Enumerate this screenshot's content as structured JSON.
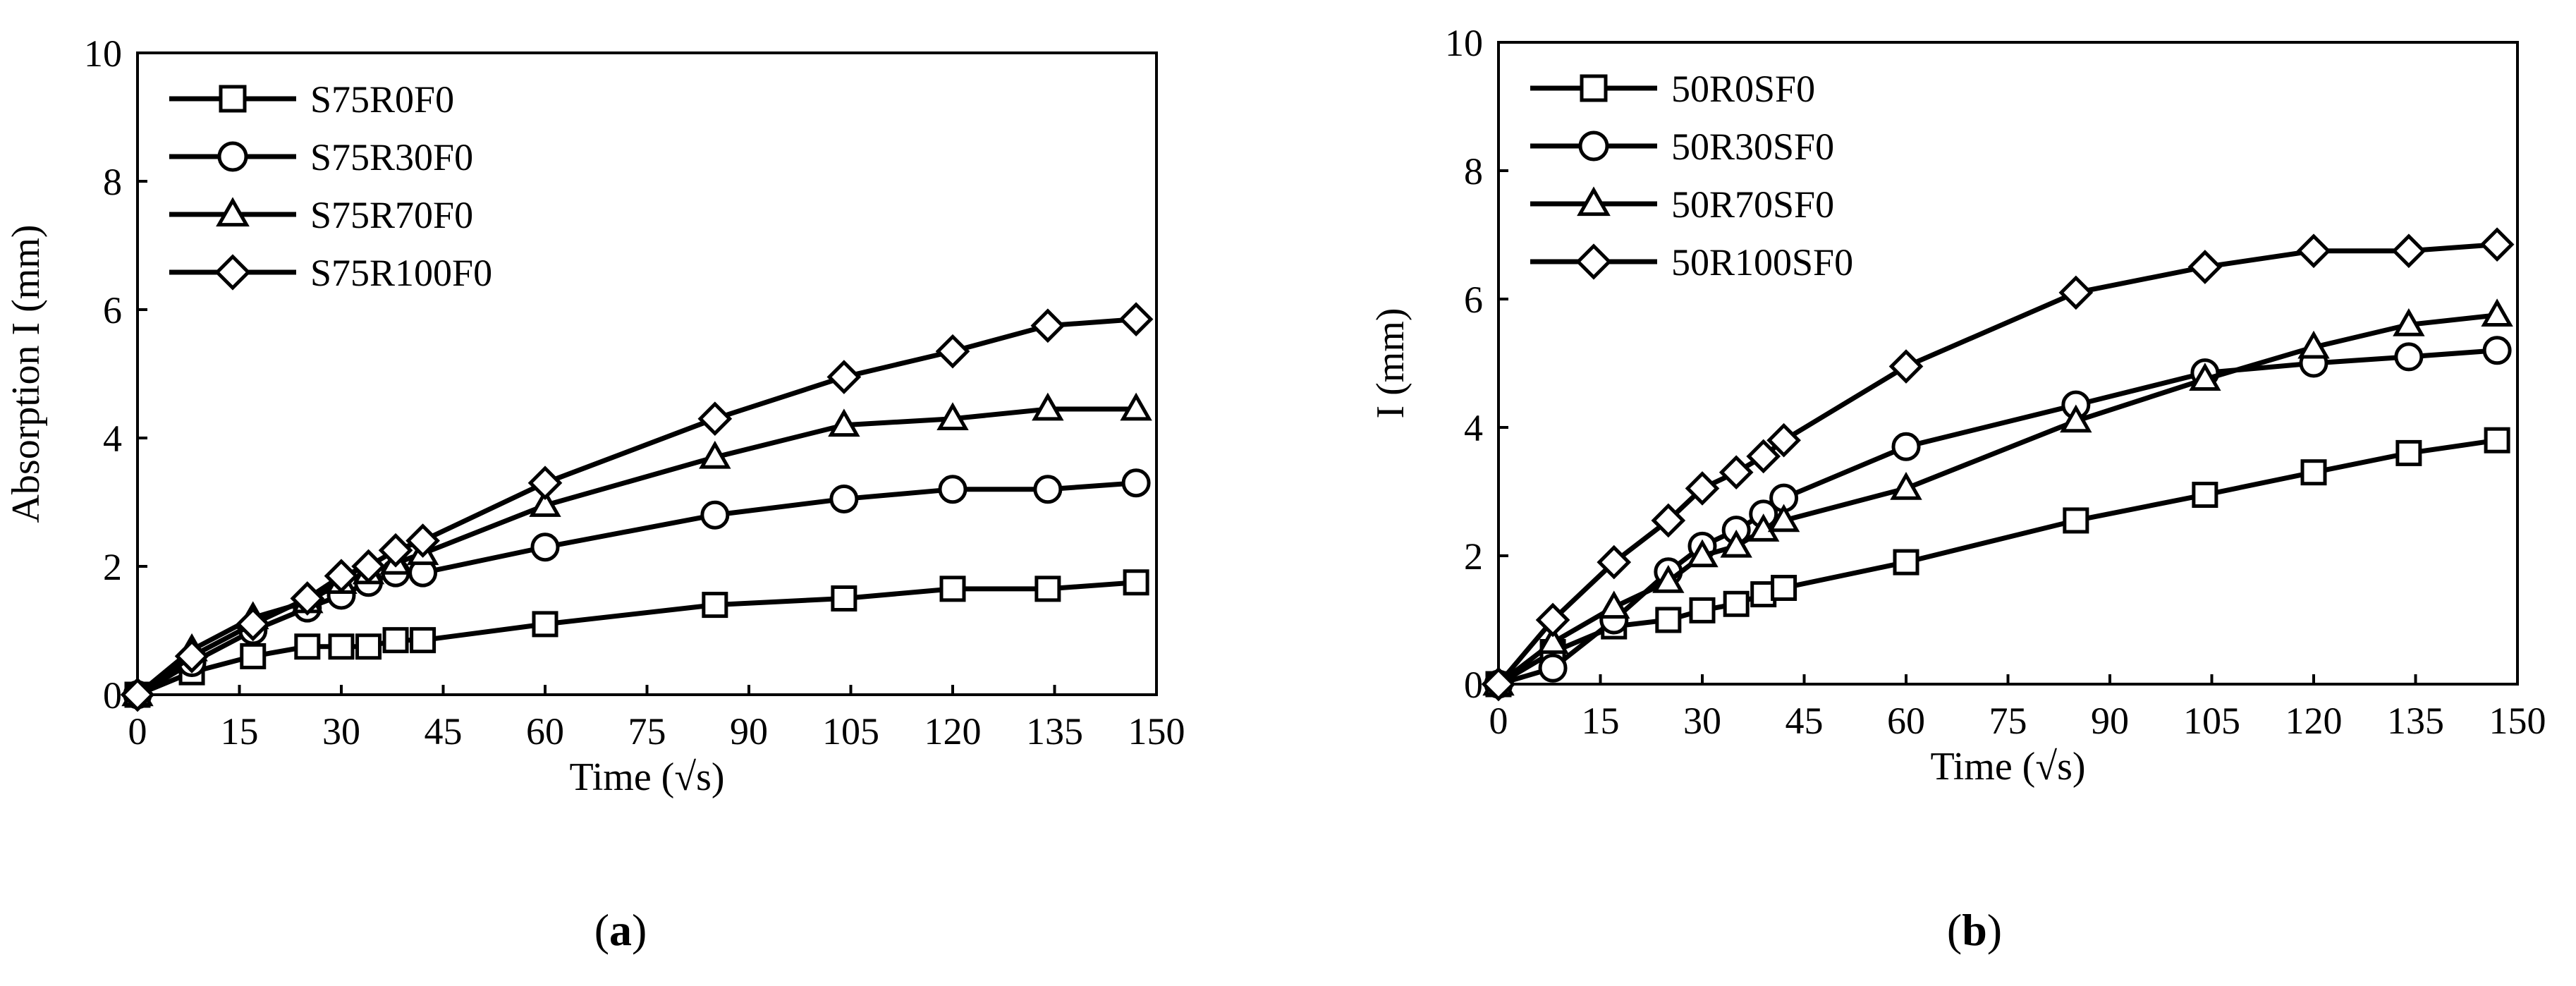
{
  "chart_data": [
    {
      "type": "line",
      "panel_label": "a",
      "xlabel": "Time (√s)",
      "ylabel": "Absorption I (mm)",
      "xlim": [
        0,
        150
      ],
      "ylim": [
        0,
        10
      ],
      "xticks": [
        0,
        15,
        30,
        45,
        60,
        75,
        90,
        105,
        120,
        135,
        150
      ],
      "yticks": [
        0,
        2,
        4,
        6,
        8,
        10
      ],
      "grid": false,
      "legend_position": "top-left",
      "series": [
        {
          "name": "S75R0F0",
          "marker": "square",
          "x": [
            0,
            8,
            17,
            25,
            30,
            34,
            38,
            42,
            60,
            85,
            104,
            120,
            134,
            147
          ],
          "y": [
            0,
            0.35,
            0.6,
            0.75,
            0.75,
            0.75,
            0.85,
            0.85,
            1.1,
            1.4,
            1.5,
            1.65,
            1.65,
            1.75
          ]
        },
        {
          "name": "S75R30F0",
          "marker": "circle",
          "x": [
            0,
            8,
            17,
            25,
            30,
            34,
            38,
            42,
            60,
            85,
            104,
            120,
            134,
            147
          ],
          "y": [
            0,
            0.5,
            1.0,
            1.35,
            1.55,
            1.75,
            1.9,
            1.9,
            2.3,
            2.8,
            3.05,
            3.2,
            3.2,
            3.3
          ]
        },
        {
          "name": "S75R70F0",
          "marker": "triangle",
          "x": [
            0,
            8,
            17,
            25,
            30,
            34,
            38,
            42,
            60,
            85,
            104,
            120,
            134,
            147
          ],
          "y": [
            0,
            0.7,
            1.2,
            1.45,
            1.75,
            1.9,
            2.05,
            2.2,
            2.95,
            3.7,
            4.2,
            4.3,
            4.45,
            4.45
          ]
        },
        {
          "name": "S75R100F0",
          "marker": "diamond",
          "x": [
            0,
            8,
            17,
            25,
            30,
            34,
            38,
            42,
            60,
            85,
            104,
            120,
            134,
            147
          ],
          "y": [
            0,
            0.6,
            1.1,
            1.5,
            1.85,
            2.0,
            2.25,
            2.4,
            3.3,
            4.3,
            4.95,
            5.35,
            5.75,
            5.85
          ]
        }
      ]
    },
    {
      "type": "line",
      "panel_label": "b",
      "xlabel": "Time (√s)",
      "ylabel": "I (mm)",
      "xlim": [
        0,
        150
      ],
      "ylim": [
        0,
        10
      ],
      "xticks": [
        0,
        15,
        30,
        45,
        60,
        75,
        90,
        105,
        120,
        135,
        150
      ],
      "yticks": [
        0,
        2,
        4,
        6,
        8,
        10
      ],
      "grid": false,
      "legend_position": "top-left",
      "series": [
        {
          "name": "50R0SF0",
          "marker": "square",
          "x": [
            0,
            8,
            17,
            25,
            30,
            35,
            39,
            42,
            60,
            85,
            104,
            120,
            134,
            147
          ],
          "y": [
            0,
            0.5,
            0.9,
            1.0,
            1.15,
            1.25,
            1.4,
            1.5,
            1.9,
            2.55,
            2.95,
            3.3,
            3.6,
            3.8
          ]
        },
        {
          "name": "50R30SF0",
          "marker": "circle",
          "x": [
            0,
            8,
            17,
            25,
            30,
            35,
            39,
            42,
            60,
            85,
            104,
            120,
            134,
            147
          ],
          "y": [
            0,
            0.25,
            1.0,
            1.75,
            2.15,
            2.4,
            2.65,
            2.9,
            3.7,
            4.35,
            4.85,
            5.0,
            5.1,
            5.2
          ]
        },
        {
          "name": "50R70SF0",
          "marker": "triangle",
          "x": [
            0,
            8,
            17,
            25,
            30,
            35,
            39,
            42,
            60,
            85,
            104,
            120,
            134,
            147
          ],
          "y": [
            0,
            0.65,
            1.2,
            1.6,
            2.0,
            2.15,
            2.4,
            2.55,
            3.05,
            4.1,
            4.75,
            5.25,
            5.6,
            5.75
          ]
        },
        {
          "name": "50R100SF0",
          "marker": "diamond",
          "x": [
            0,
            8,
            17,
            25,
            30,
            35,
            39,
            42,
            60,
            85,
            104,
            120,
            134,
            147
          ],
          "y": [
            0,
            1.0,
            1.9,
            2.55,
            3.05,
            3.3,
            3.55,
            3.8,
            4.95,
            6.1,
            6.5,
            6.75,
            6.75,
            6.85
          ]
        }
      ]
    }
  ]
}
